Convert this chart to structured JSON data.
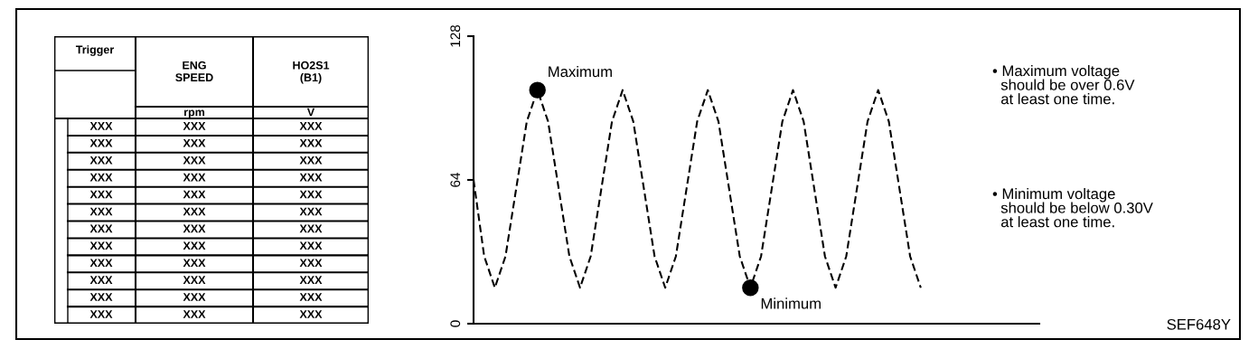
{
  "chart_data": [
    {
      "type": "other",
      "annotations": [
        "Trigger",
        "ENG\nSPEED",
        "HO2S1\n(B1)",
        "rpm",
        "V",
        "XXX",
        "XXX",
        "XXX",
        "XXX",
        "XXX",
        "XXX",
        "XXX",
        "XXX",
        "XXX",
        "XXX",
        "XXX",
        "XXX",
        "XXX",
        "XXX",
        "XXX",
        "XXX",
        "XXX",
        "XXX",
        "XXX",
        "XXX",
        "XXX",
        "XXX",
        "XXX",
        "XXX",
        "XXX",
        "XXX",
        "XXX",
        "XXX",
        "XXX",
        "XXX",
        "XXX",
        "XXX",
        "XXX",
        "XXX",
        "XXX",
        "XXX"
      ]
    },
    {
      "type": "line",
      "line_style": "dashed",
      "tick_labels": "y",
      "grid": false,
      "ylim": [
        0,
        128
      ],
      "yticks": [
        0,
        64,
        128
      ],
      "categories": [
        null,
        null,
        null,
        null,
        null,
        null,
        null,
        null,
        null,
        null,
        null,
        null,
        null,
        null,
        null,
        null,
        null,
        null,
        null,
        null,
        null,
        null,
        null,
        null,
        null,
        null,
        null,
        null,
        null,
        null,
        null,
        null,
        null,
        null,
        null,
        null,
        null,
        null,
        null,
        null,
        null,
        null,
        null
      ],
      "series": [
        {
          "type": "line",
          "color": "#000000",
          "values": [
            64,
            30,
            16,
            30,
            60,
            90,
            104,
            90,
            60,
            30,
            16,
            30,
            60,
            90,
            104,
            90,
            60,
            30,
            16,
            30,
            60,
            90,
            104,
            90,
            60,
            30,
            16,
            30,
            60,
            90,
            104,
            90,
            60,
            30,
            16,
            30,
            60,
            90,
            104,
            90,
            60,
            30,
            16
          ]
        },
        {
          "type": "scatter",
          "color": "#000000",
          "values": [
            null,
            null,
            null,
            null,
            null,
            null,
            104,
            null,
            null,
            null,
            null,
            null,
            null,
            null,
            null,
            null,
            null,
            null,
            null,
            null,
            null,
            null,
            null,
            null,
            null,
            null,
            16,
            null,
            null,
            null,
            null,
            null,
            null,
            null,
            null,
            null,
            null,
            null,
            null,
            null,
            null,
            null,
            null
          ]
        }
      ],
      "annotations": [
        "Maximum",
        "Minimum",
        "• Maximum voltage\n  should be over 0.6V\n  at least one time.",
        "• Minimum voltage\n  should be below 0.30V\n  at least one time.",
        "SEF648Y"
      ]
    }
  ]
}
